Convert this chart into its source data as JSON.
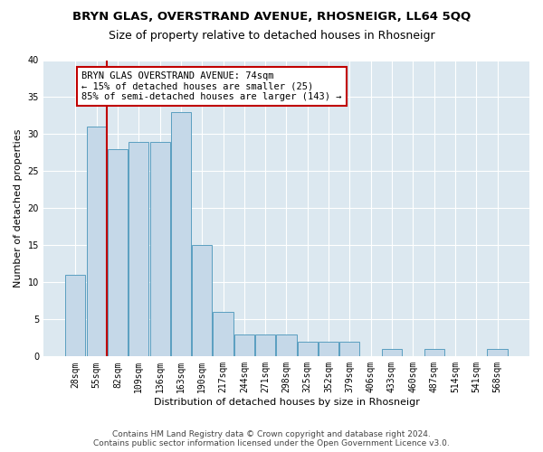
{
  "title": "BRYN GLAS, OVERSTRAND AVENUE, RHOSNEIGR, LL64 5QQ",
  "subtitle": "Size of property relative to detached houses in Rhosneigr",
  "xlabel": "Distribution of detached houses by size in Rhosneigr",
  "ylabel": "Number of detached properties",
  "categories": [
    "28sqm",
    "55sqm",
    "82sqm",
    "109sqm",
    "136sqm",
    "163sqm",
    "190sqm",
    "217sqm",
    "244sqm",
    "271sqm",
    "298sqm",
    "325sqm",
    "352sqm",
    "379sqm",
    "406sqm",
    "433sqm",
    "460sqm",
    "487sqm",
    "514sqm",
    "541sqm",
    "568sqm"
  ],
  "values": [
    11,
    31,
    28,
    29,
    29,
    33,
    15,
    6,
    3,
    3,
    3,
    2,
    2,
    2,
    0,
    1,
    0,
    1,
    0,
    0,
    1
  ],
  "bar_color": "#c5d8e8",
  "bar_edge_color": "#5a9fc0",
  "vline_x_index": 1.5,
  "annotation_box_text": "BRYN GLAS OVERSTRAND AVENUE: 74sqm\n← 15% of detached houses are smaller (25)\n85% of semi-detached houses are larger (143) →",
  "ylim": [
    0,
    40
  ],
  "yticks": [
    0,
    5,
    10,
    15,
    20,
    25,
    30,
    35,
    40
  ],
  "footer": "Contains HM Land Registry data © Crown copyright and database right 2024.\nContains public sector information licensed under the Open Government Licence v3.0.",
  "background_color": "#ffffff",
  "plot_bg_color": "#dce8f0",
  "grid_color": "#ffffff",
  "title_fontsize": 9.5,
  "subtitle_fontsize": 9,
  "axis_label_fontsize": 8,
  "tick_fontsize": 7,
  "annotation_fontsize": 7.5,
  "footer_fontsize": 6.5
}
